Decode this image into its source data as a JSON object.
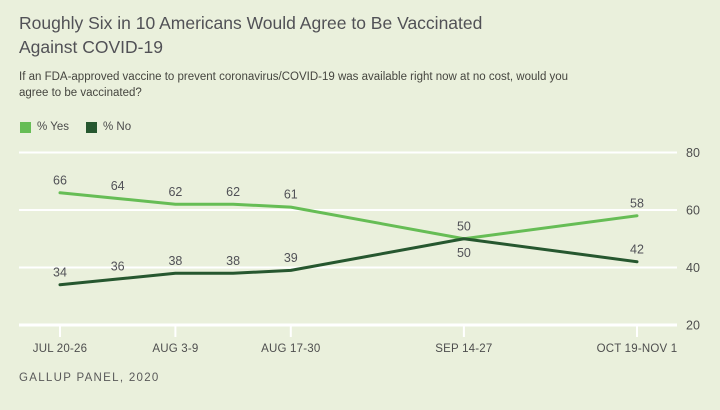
{
  "title": "Roughly Six in 10 Americans Would Agree to Be Vaccinated Against COVID-19",
  "subtitle": "If an FDA-approved vaccine to prevent coronavirus/COVID-19 was available right now at no cost, would you agree to be vaccinated?",
  "footer": "GALLUP PANEL, 2020",
  "legend": {
    "items": [
      {
        "id": "yes",
        "label": "% Yes",
        "color": "#66bd55"
      },
      {
        "id": "no",
        "label": "% No",
        "color": "#26572f"
      }
    ]
  },
  "colors": {
    "background": "#eaf0dc",
    "gridline": "#ffffff",
    "yes_line": "#66bd55",
    "no_line": "#26572f",
    "title_text": "#515156",
    "subtitle_text": "#45453f",
    "value_label_text": "#515157",
    "axis_label_text": "#4e4e4e",
    "footer_text": "#595959"
  },
  "chart_data": {
    "type": "line",
    "title": "Roughly Six in 10 Americans Would Agree to Be Vaccinated Against COVID-19",
    "xlabel": "",
    "ylabel": "",
    "grid": "horizontal",
    "legend_position": "top-left",
    "x_positions": [
      0,
      1,
      2,
      3,
      4,
      7,
      10
    ],
    "x_axis": {
      "tick_positions": [
        0,
        2,
        4,
        7,
        10
      ],
      "tick_labels": [
        "JUL 20-26",
        "AUG 3-9",
        "AUG 17-30",
        "SEP 14-27",
        "OCT 19-NOV 1"
      ]
    },
    "y_axis": {
      "ticks": [
        20,
        40,
        60,
        80
      ],
      "ylim": [
        20,
        85
      ],
      "labels_side": "right"
    },
    "series": [
      {
        "id": "yes",
        "name": "% Yes",
        "color": "#66bd55",
        "values": [
          66,
          64,
          62,
          62,
          61,
          50,
          58
        ]
      },
      {
        "id": "no",
        "name": "% No",
        "color": "#26572f",
        "values": [
          34,
          36,
          38,
          38,
          39,
          50,
          42
        ]
      }
    ]
  }
}
